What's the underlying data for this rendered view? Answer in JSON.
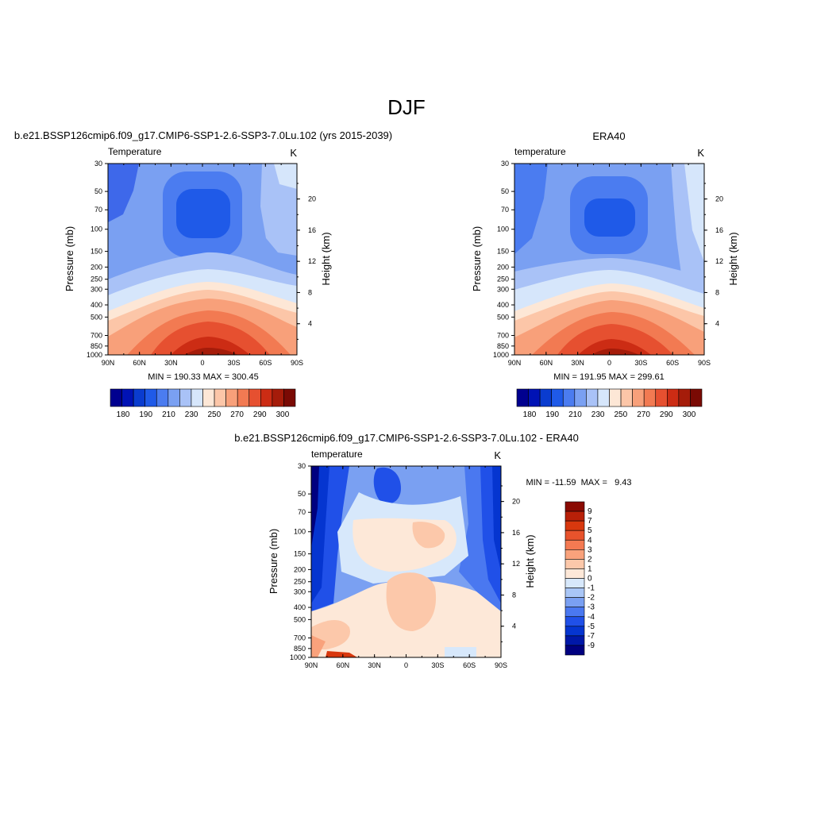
{
  "figure": {
    "title": "DJF"
  },
  "chart_data": [
    {
      "type": "heatmap",
      "title": "b.e21.BSSP126cmip6.f09_g17.CMIP6-SSP1-2.6-SSP3-7.0Lu.102 (yrs 2015-2039)",
      "variable": "Temperature",
      "units": "K",
      "ylabel": "Pressure (mb)",
      "y2label": "Height (km)",
      "xticks": [
        "90N",
        "60N",
        "30N",
        "0",
        "30S",
        "60S",
        "90S"
      ],
      "yticks": [
        "30",
        "50",
        "70",
        "100",
        "150",
        "200",
        "250",
        "300",
        "400",
        "500",
        "700",
        "850",
        "1000"
      ],
      "y2ticks": [
        "20",
        "16",
        "12",
        "8",
        "4"
      ],
      "stats": "MIN = 190.33  MAX = 300.45",
      "min": 190.33,
      "max": 300.45,
      "colorbar": {
        "orientation": "horizontal",
        "colors": [
          "#00008f",
          "#0012b5",
          "#0a3ccf",
          "#1f5ae8",
          "#4b7cf0",
          "#7aa0f2",
          "#a9c2f7",
          "#d6e6fb",
          "#fde7d6",
          "#fcc6a8",
          "#f8a07a",
          "#f27a52",
          "#e65030",
          "#cc2c14",
          "#a51c0a",
          "#7a0a04"
        ],
        "labels": [
          "180",
          "190",
          "210",
          "230",
          "250",
          "270",
          "290",
          "300"
        ]
      }
    },
    {
      "type": "heatmap",
      "title": "ERA40",
      "variable": "temperature",
      "units": "K",
      "ylabel": "Pressure (mb)",
      "y2label": "Height (km)",
      "xticks": [
        "90N",
        "60N",
        "30N",
        "0",
        "30S",
        "60S",
        "90S"
      ],
      "yticks": [
        "30",
        "50",
        "70",
        "100",
        "150",
        "200",
        "250",
        "300",
        "400",
        "500",
        "700",
        "850",
        "1000"
      ],
      "y2ticks": [
        "20",
        "16",
        "12",
        "8",
        "4"
      ],
      "stats": "MIN = 191.95  MAX = 299.61",
      "min": 191.95,
      "max": 299.61,
      "colorbar": {
        "orientation": "horizontal",
        "colors": [
          "#00008f",
          "#0012b5",
          "#0a3ccf",
          "#1f5ae8",
          "#4b7cf0",
          "#7aa0f2",
          "#a9c2f7",
          "#d6e6fb",
          "#fde7d6",
          "#fcc6a8",
          "#f8a07a",
          "#f27a52",
          "#e65030",
          "#cc2c14",
          "#a51c0a",
          "#7a0a04"
        ],
        "labels": [
          "180",
          "190",
          "210",
          "230",
          "250",
          "270",
          "290",
          "300"
        ]
      }
    },
    {
      "type": "heatmap",
      "title": "b.e21.BSSP126cmip6.f09_g17.CMIP6-SSP1-2.6-SSP3-7.0Lu.102 - ERA40",
      "variable": "temperature",
      "units": "K",
      "ylabel": "Pressure (mb)",
      "y2label": "Height (km)",
      "xticks": [
        "90N",
        "60N",
        "30N",
        "0",
        "30S",
        "60S",
        "90S"
      ],
      "yticks": [
        "30",
        "50",
        "70",
        "100",
        "150",
        "200",
        "250",
        "300",
        "400",
        "500",
        "700",
        "850",
        "1000"
      ],
      "y2ticks": [
        "20",
        "16",
        "12",
        "8",
        "4"
      ],
      "stats": "MIN = -11.59  MAX =   9.43",
      "min": -11.59,
      "max": 9.43,
      "colorbar": {
        "orientation": "vertical",
        "colors": [
          "#000080",
          "#0018a8",
          "#0535d0",
          "#2050e8",
          "#4a78f0",
          "#7aa0f2",
          "#a9c6f6",
          "#d7e8fb",
          "#fde8d8",
          "#fcc8aa",
          "#f9a27c",
          "#f47a52",
          "#e8532c",
          "#d8380e",
          "#b82008",
          "#8a0a02"
        ],
        "labels": [
          "9",
          "7",
          "5",
          "4",
          "3",
          "2",
          "1",
          "0",
          "-1",
          "-2",
          "-3",
          "-4",
          "-5",
          "-7",
          "-9"
        ]
      }
    }
  ]
}
